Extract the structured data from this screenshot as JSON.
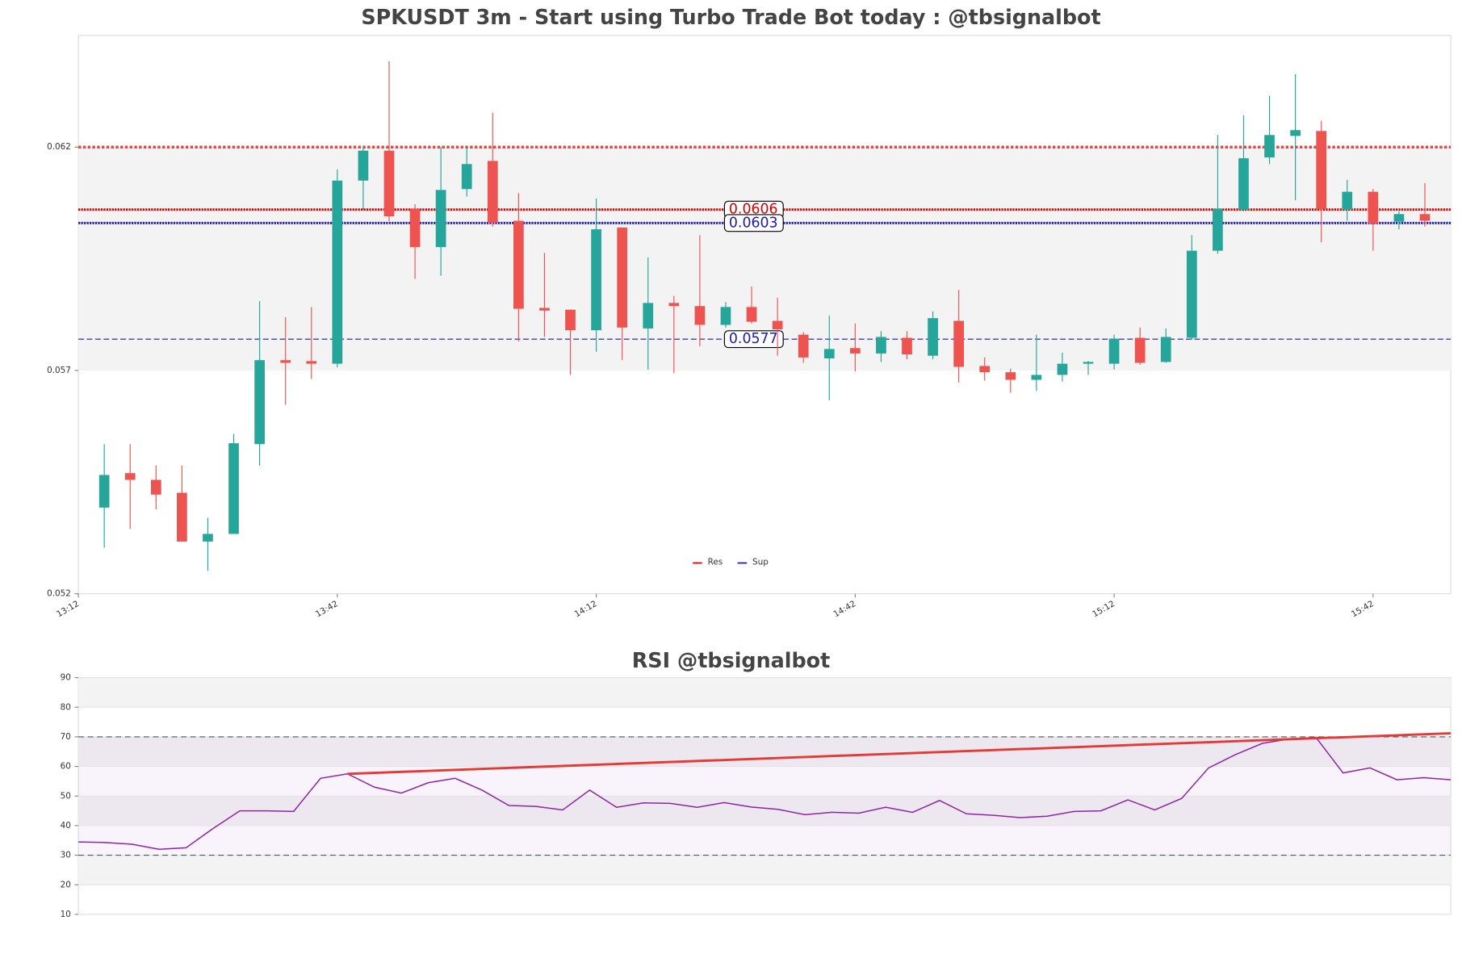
{
  "chart_data": [
    {
      "type": "candlestick",
      "title": "SPKUSDT 3m - Start using Turbo Trade Bot today : @tbsignalbot",
      "open": [
        0.05393,
        0.0547,
        0.05455,
        0.05426,
        0.05317,
        0.05334,
        0.05535,
        0.05723,
        0.05721,
        0.05715,
        0.06125,
        0.06192,
        0.06062,
        0.05976,
        0.06106,
        0.06169,
        0.06035,
        0.0584,
        0.05836,
        0.0579,
        0.0602,
        0.05794,
        0.05851,
        0.05844,
        0.05802,
        0.05842,
        0.05811,
        0.0578,
        0.05727,
        0.0575,
        0.05738,
        0.05773,
        0.05733,
        0.05811,
        0.0571,
        0.05696,
        0.05679,
        0.0569,
        0.05715,
        0.05715,
        0.05773,
        0.05719,
        0.05773,
        0.05968,
        0.0606,
        0.06177,
        0.06225,
        0.06236,
        0.0606,
        0.061,
        0.06033,
        0.0605
      ],
      "high": [
        0.05535,
        0.05535,
        0.05487,
        0.05487,
        0.0537,
        0.05558,
        0.05855,
        0.05819,
        0.05842,
        0.0615,
        0.062,
        0.06392,
        0.06072,
        0.062,
        0.062,
        0.06277,
        0.06097,
        0.05963,
        0.05836,
        0.06085,
        0.0602,
        0.05953,
        0.05867,
        0.06003,
        0.05853,
        0.05888,
        0.05863,
        0.05786,
        0.05823,
        0.05805,
        0.05788,
        0.05788,
        0.05832,
        0.0588,
        0.05729,
        0.05704,
        0.0578,
        0.0574,
        0.05721,
        0.0578,
        0.05796,
        0.05794,
        0.06003,
        0.06227,
        0.06271,
        0.06315,
        0.06363,
        0.06259,
        0.06127,
        0.06106,
        0.06056,
        0.06119
      ],
      "low": [
        0.05303,
        0.05345,
        0.05389,
        0.05317,
        0.05251,
        0.05334,
        0.05487,
        0.05623,
        0.05681,
        0.05707,
        0.0606,
        0.06034,
        0.05905,
        0.05912,
        0.06089,
        0.06022,
        0.05765,
        0.05775,
        0.0569,
        0.05742,
        0.05723,
        0.05702,
        0.05694,
        0.05754,
        0.05796,
        0.05805,
        0.05733,
        0.05717,
        0.05633,
        0.05698,
        0.05719,
        0.05725,
        0.05725,
        0.05673,
        0.05677,
        0.0565,
        0.05654,
        0.05675,
        0.0569,
        0.05702,
        0.05713,
        0.05717,
        0.05769,
        0.05961,
        0.06056,
        0.06162,
        0.06081,
        0.05987,
        0.06035,
        0.05968,
        0.06016,
        0.06022
      ],
      "close": [
        0.05466,
        0.05455,
        0.05422,
        0.05317,
        0.05334,
        0.05537,
        0.05723,
        0.05717,
        0.05715,
        0.06125,
        0.06192,
        0.06045,
        0.05976,
        0.06104,
        0.06162,
        0.06031,
        0.05838,
        0.05834,
        0.0579,
        0.06016,
        0.05796,
        0.05851,
        0.05844,
        0.05802,
        0.05842,
        0.05809,
        0.05792,
        0.05729,
        0.05748,
        0.05738,
        0.05775,
        0.05736,
        0.05817,
        0.05708,
        0.05696,
        0.05679,
        0.0569,
        0.05715,
        0.05719,
        0.05771,
        0.05717,
        0.05775,
        0.05968,
        0.06062,
        0.06175,
        0.06227,
        0.06238,
        0.06062,
        0.061,
        0.06029,
        0.0605,
        0.06035
      ],
      "up_color": "#26a69a",
      "down_color": "#ef5350",
      "xlim": [
        -1,
        52
      ],
      "xticks": [
        {
          "value": -1,
          "label": "13:12"
        },
        {
          "value": 9,
          "label": "13:42"
        },
        {
          "value": 19,
          "label": "14:12"
        },
        {
          "value": 29,
          "label": "14:42"
        },
        {
          "value": 39,
          "label": "15:12"
        },
        {
          "value": 49,
          "label": "15:42"
        }
      ],
      "ylim": [
        0.052,
        0.0645
      ],
      "yticks": [
        0.052,
        0.057,
        0.062
      ],
      "zone": [
        0.057,
        0.062
      ],
      "series": [
        {
          "name": "Res",
          "color": "#d50000",
          "values": [
            0.0606
          ]
        },
        {
          "name": "Sup",
          "color": "#1a1ab0",
          "values": [
            0.0603,
            0.0577
          ]
        }
      ],
      "legend": "lower center"
    },
    {
      "type": "line",
      "title": "RSI @tbsignalbot",
      "values": [
        34.5,
        34.3,
        33.7,
        32.0,
        32.5,
        39,
        45,
        45,
        44.8,
        56,
        57.5,
        53,
        51,
        54.5,
        56,
        52,
        46.8,
        46.5,
        45.3,
        52,
        46.2,
        47.7,
        47.5,
        46.2,
        47.8,
        46.3,
        45.5,
        43.7,
        44.5,
        44.2,
        46.2,
        44.5,
        48.5,
        44,
        43.5,
        42.7,
        43.2,
        44.8,
        45,
        48.7,
        45.3,
        49.2,
        59.5,
        64,
        67.8,
        69.3,
        69.7,
        57.8,
        59.5,
        55.5,
        56.2,
        55.5
      ],
      "color": "#8e24aa",
      "xlim": [
        0,
        51
      ],
      "ylim": [
        10,
        90
      ],
      "yticks": [
        10,
        20,
        30,
        40,
        50,
        60,
        70,
        80,
        90
      ],
      "hlines": [
        30,
        70
      ],
      "trendline": {
        "x": [
          10,
          51
        ],
        "values": [
          57.5,
          71.2
        ],
        "color": "#e53935"
      }
    }
  ]
}
